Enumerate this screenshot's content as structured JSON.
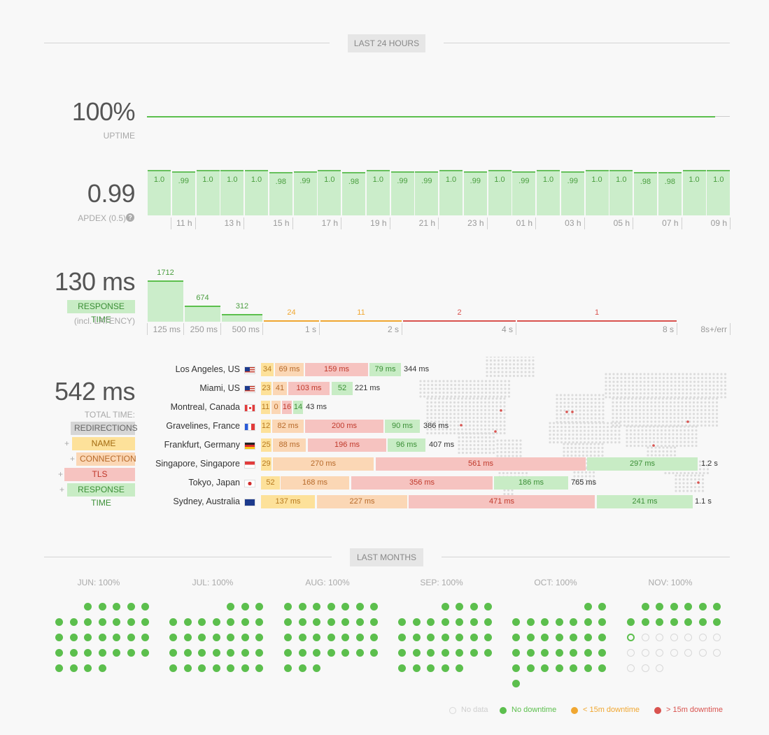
{
  "colors": {
    "green": "#5cbf4d",
    "orange": "#f0a731",
    "red": "#d9534f",
    "nodata": "#d8d8d8",
    "dns": "#fde19a",
    "connection": "#fbd7b5",
    "tls": "#f6c3c0",
    "response": "#c8ecc5"
  },
  "last24": {
    "section_label": "LAST 24 HOURS",
    "uptime": {
      "value": "100%",
      "label": "UPTIME"
    },
    "apdex": {
      "value": "0.99",
      "label": "APDEX (0.5)",
      "help_icon": "question-circle-icon",
      "bars": [
        "1.0",
        ".99",
        "1.0",
        "1.0",
        "1.0",
        ".98",
        ".99",
        "1.0",
        ".98",
        "1.0",
        ".99",
        ".99",
        "1.0",
        ".99",
        "1.0",
        ".99",
        "1.0",
        ".99",
        "1.0",
        "1.0",
        ".98",
        ".98",
        "1.0",
        "1.0"
      ],
      "hours": [
        "11 h",
        "13 h",
        "15 h",
        "17 h",
        "19 h",
        "21 h",
        "23 h",
        "01 h",
        "03 h",
        "05 h",
        "07 h",
        "09 h"
      ]
    },
    "response": {
      "value": "130 ms",
      "label": "RESPONSE TIME",
      "sublabel": "(incl. LATENCY)",
      "histogram": [
        {
          "range": "125 ms",
          "count": "1712"
        },
        {
          "range": "250 ms",
          "count": "674"
        },
        {
          "range": "500 ms",
          "count": "312"
        },
        {
          "range": "1 s",
          "count": "24"
        },
        {
          "range": "2 s",
          "count": "11"
        },
        {
          "range": "4 s",
          "count": "2"
        },
        {
          "range": "8 s",
          "count": "1"
        },
        {
          "range": "8s+/err",
          "count": ""
        }
      ]
    },
    "total": {
      "value": "542 ms",
      "label": "TOTAL TIME:",
      "legend": [
        "REDIRECTIONS",
        "NAME LOOKUP",
        "CONNECTION",
        "TLS HANDSHAKE",
        "RESPONSE TIME"
      ],
      "plus": "+",
      "locations": [
        {
          "city": "Los Angeles, US",
          "flag": "us",
          "dns": "34",
          "con": "69 ms",
          "tls": "159 ms",
          "rsp": "79 ms",
          "total": "344 ms"
        },
        {
          "city": "Miami, US",
          "flag": "us",
          "dns": "23",
          "con": "41",
          "tls": "103 ms",
          "rsp": "52",
          "total": "221 ms"
        },
        {
          "city": "Montreal, Canada",
          "flag": "ca",
          "dns": "11",
          "con": "0",
          "tls": "16",
          "rsp": "14",
          "total": "43 ms"
        },
        {
          "city": "Gravelines, France",
          "flag": "fr",
          "dns": "12",
          "con": "82 ms",
          "tls": "200 ms",
          "rsp": "90 ms",
          "total": "386 ms"
        },
        {
          "city": "Frankfurt, Germany",
          "flag": "de",
          "dns": "25",
          "con": "88 ms",
          "tls": "196 ms",
          "rsp": "96 ms",
          "total": "407 ms"
        },
        {
          "city": "Singapore, Singapore",
          "flag": "sg",
          "dns": "29",
          "con": "270 ms",
          "tls": "561 ms",
          "rsp": "297 ms",
          "total": "1.2 s"
        },
        {
          "city": "Tokyo, Japan",
          "flag": "jp",
          "dns": "52",
          "con": "168 ms",
          "tls": "356 ms",
          "rsp": "186 ms",
          "total": "765 ms"
        },
        {
          "city": "Sydney, Australia",
          "flag": "au",
          "dns": "137 ms",
          "con": "227 ms",
          "tls": "471 ms",
          "rsp": "241 ms",
          "total": "1.1 s"
        }
      ]
    }
  },
  "months": {
    "section_label": "LAST MONTHS",
    "list": [
      {
        "label": "JUN: 100%",
        "first_weekday": 2,
        "days": 30,
        "today": 0
      },
      {
        "label": "JUL: 100%",
        "first_weekday": 4,
        "days": 31,
        "today": 0
      },
      {
        "label": "AUG: 100%",
        "first_weekday": 0,
        "days": 31,
        "today": 0
      },
      {
        "label": "SEP: 100%",
        "first_weekday": 3,
        "days": 30,
        "today": 0
      },
      {
        "label": "OCT: 100%",
        "first_weekday": 5,
        "days": 31,
        "today": 0
      },
      {
        "label": "NOV: 100%",
        "first_weekday": 1,
        "days": 30,
        "today": 14
      }
    ],
    "legend": {
      "no_data": "No data",
      "no_downtime": "No downtime",
      "lt15": "< 15m downtime",
      "gt15": "> 15m downtime"
    }
  }
}
